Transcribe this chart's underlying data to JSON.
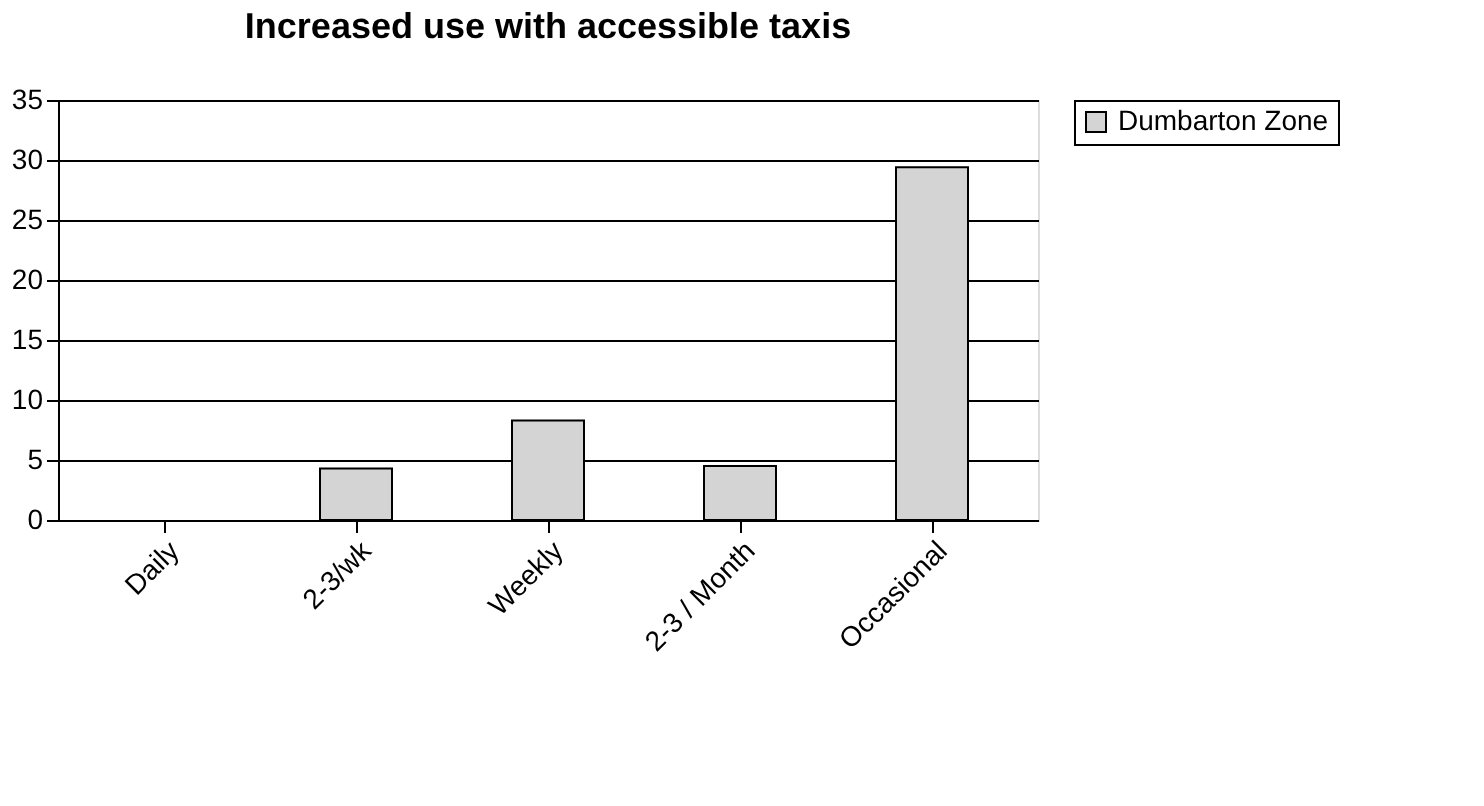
{
  "chart_data": {
    "type": "bar",
    "title": "Increased use with accessible taxis",
    "categories": [
      "Daily",
      "2-3/wk",
      "Weekly",
      "2-3 / Month",
      "Occasional"
    ],
    "series": [
      {
        "name": "Dumbarton Zone",
        "color": "#d4d4d4",
        "values": [
          0,
          4.3,
          8.3,
          4.5,
          29.4
        ]
      }
    ],
    "ylim": [
      0,
      35
    ],
    "yticks": [
      0,
      5,
      10,
      15,
      20,
      25,
      30,
      35
    ],
    "grid": "y",
    "legend": "right"
  }
}
